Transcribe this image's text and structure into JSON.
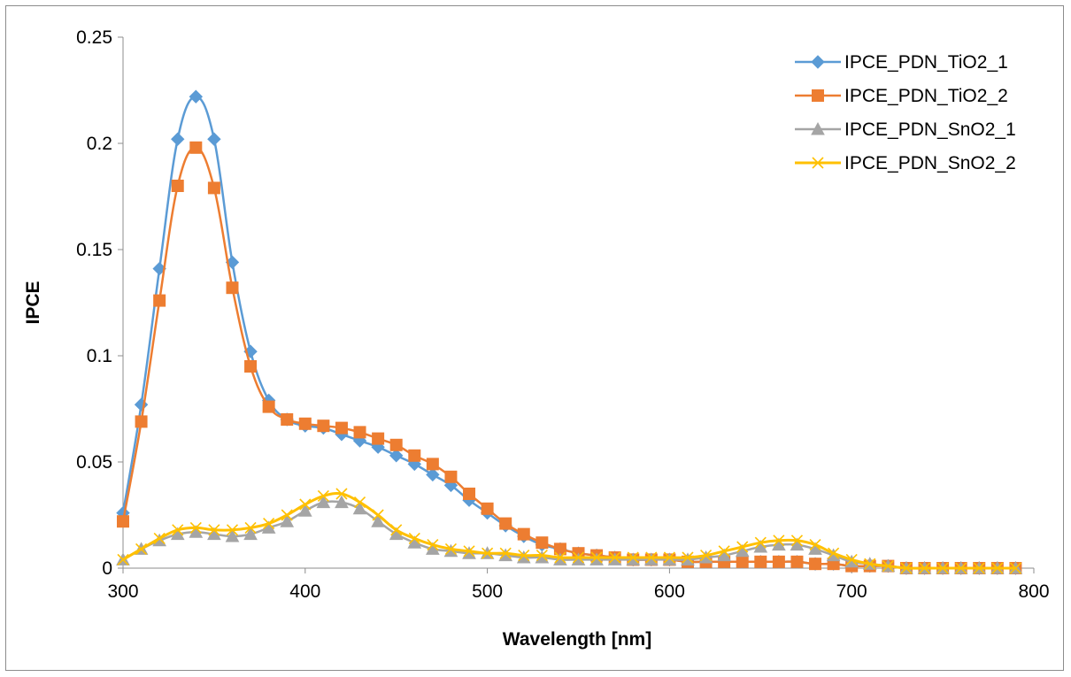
{
  "chart_data": {
    "type": "line",
    "title": "",
    "xlabel": "Wavelength [nm]",
    "ylabel": "IPCE",
    "xlim": [
      300,
      800
    ],
    "ylim": [
      0,
      0.25
    ],
    "xticks": [
      300,
      400,
      500,
      600,
      700,
      800
    ],
    "xtick_labels": [
      "300",
      "400",
      "500",
      "600",
      "700",
      "800"
    ],
    "yticks": [
      0,
      0.05,
      0.1,
      0.15,
      0.2,
      0.25
    ],
    "ytick_labels": [
      "0",
      "0.05",
      "0.1",
      "0.15",
      "0.2",
      "0.25"
    ],
    "grid": false,
    "legend_position": "top-right",
    "x": [
      300,
      310,
      320,
      330,
      340,
      350,
      360,
      370,
      380,
      390,
      400,
      410,
      420,
      430,
      440,
      450,
      460,
      470,
      480,
      490,
      500,
      510,
      520,
      530,
      540,
      550,
      560,
      570,
      580,
      590,
      600,
      610,
      620,
      630,
      640,
      650,
      660,
      670,
      680,
      690,
      700,
      710,
      720,
      730,
      740,
      750,
      760,
      770,
      780,
      790
    ],
    "series": [
      {
        "name": "IPCE_PDN_TiO2_1",
        "color": "#5b9bd5",
        "marker": "diamond",
        "values": [
          0.026,
          0.077,
          0.141,
          0.202,
          0.222,
          0.202,
          0.144,
          0.102,
          0.079,
          0.07,
          0.067,
          0.066,
          0.063,
          0.06,
          0.057,
          0.053,
          0.049,
          0.044,
          0.039,
          0.032,
          0.026,
          0.02,
          0.015,
          0.011,
          0.009,
          0.007,
          0.006,
          0.005,
          0.004,
          0.004,
          0.004,
          0.003,
          0.003,
          0.003,
          0.003,
          0.003,
          0.003,
          0.003,
          0.002,
          0.002,
          0.001,
          0.001,
          0.001,
          0.0,
          0.0,
          0.0,
          0.0,
          0.0,
          0.0,
          0.0
        ]
      },
      {
        "name": "IPCE_PDN_TiO2_2",
        "color": "#ed7d31",
        "marker": "square",
        "values": [
          0.022,
          0.069,
          0.126,
          0.18,
          0.198,
          0.179,
          0.132,
          0.095,
          0.076,
          0.07,
          0.068,
          0.067,
          0.066,
          0.064,
          0.061,
          0.058,
          0.053,
          0.049,
          0.043,
          0.035,
          0.028,
          0.021,
          0.016,
          0.012,
          0.009,
          0.007,
          0.006,
          0.005,
          0.004,
          0.004,
          0.004,
          0.003,
          0.003,
          0.003,
          0.003,
          0.003,
          0.003,
          0.003,
          0.002,
          0.002,
          0.001,
          0.001,
          0.001,
          0.0,
          0.0,
          0.0,
          0.0,
          0.0,
          0.0,
          0.0
        ]
      },
      {
        "name": "IPCE_PDN_SnO2_1",
        "color": "#a5a5a5",
        "marker": "triangle",
        "values": [
          0.004,
          0.009,
          0.013,
          0.016,
          0.017,
          0.016,
          0.015,
          0.016,
          0.019,
          0.022,
          0.027,
          0.031,
          0.031,
          0.028,
          0.022,
          0.016,
          0.012,
          0.009,
          0.008,
          0.007,
          0.007,
          0.006,
          0.005,
          0.005,
          0.004,
          0.004,
          0.004,
          0.004,
          0.004,
          0.004,
          0.004,
          0.004,
          0.005,
          0.006,
          0.008,
          0.01,
          0.011,
          0.011,
          0.009,
          0.006,
          0.003,
          0.002,
          0.001,
          0.0,
          0.0,
          0.0,
          0.0,
          0.0,
          0.0,
          0.0
        ]
      },
      {
        "name": "IPCE_PDN_SnO2_2",
        "color": "#ffc000",
        "marker": "x",
        "values": [
          0.004,
          0.009,
          0.014,
          0.018,
          0.019,
          0.018,
          0.018,
          0.019,
          0.021,
          0.025,
          0.03,
          0.034,
          0.035,
          0.031,
          0.025,
          0.018,
          0.014,
          0.011,
          0.009,
          0.008,
          0.007,
          0.007,
          0.006,
          0.006,
          0.005,
          0.005,
          0.005,
          0.005,
          0.005,
          0.005,
          0.005,
          0.005,
          0.006,
          0.008,
          0.01,
          0.012,
          0.013,
          0.013,
          0.011,
          0.007,
          0.004,
          0.002,
          0.001,
          0.0,
          0.0,
          0.0,
          0.0,
          0.0,
          0.0,
          0.0
        ]
      }
    ]
  }
}
